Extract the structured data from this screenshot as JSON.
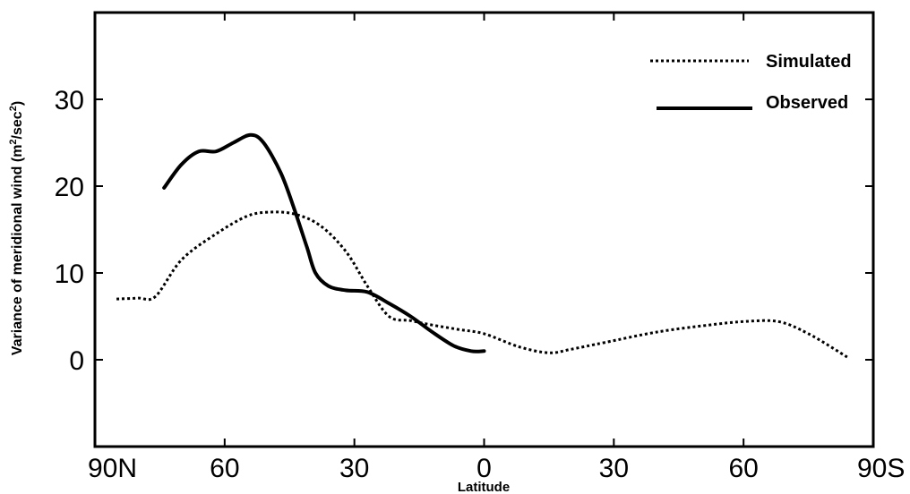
{
  "chart_data": {
    "type": "line",
    "title": "",
    "xlabel": "Latitude",
    "ylabel": "Variance of meridional wind (m2/sec2)",
    "ylabel_parts": {
      "pre1": "Variance of meridional wind (m",
      "sup1": "2",
      "mid": "/sec",
      "sup2": "2",
      "post": ")"
    },
    "x_ticks": [
      {
        "value": 90,
        "label": "90N"
      },
      {
        "value": 60,
        "label": "60"
      },
      {
        "value": 30,
        "label": "30"
      },
      {
        "value": 0,
        "label": "0"
      },
      {
        "value": -30,
        "label": "30"
      },
      {
        "value": -60,
        "label": "60"
      },
      {
        "value": -90,
        "label": "90S"
      }
    ],
    "y_ticks": [
      {
        "value": 0,
        "label": "0"
      },
      {
        "value": 10,
        "label": "10"
      },
      {
        "value": 20,
        "label": "20"
      },
      {
        "value": 30,
        "label": "30"
      }
    ],
    "xlim": [
      90,
      -90
    ],
    "ylim": [
      -10,
      40
    ],
    "grid": false,
    "legend_position": "top-right",
    "series": [
      {
        "name": "Simulated",
        "style": "dotted",
        "color": "#000000",
        "x": [
          85,
          80,
          76,
          70,
          62,
          55,
          50,
          44,
          38,
          32,
          27,
          22,
          17,
          12,
          6,
          0,
          -8,
          -15,
          -20,
          -28,
          -40,
          -52,
          -60,
          -68,
          -75,
          -84
        ],
        "y": [
          7.0,
          7.1,
          7.3,
          11.5,
          14.5,
          16.5,
          17.0,
          16.8,
          15.5,
          12.5,
          8.5,
          5.0,
          4.5,
          4.0,
          3.5,
          3.0,
          1.5,
          0.8,
          1.2,
          2.0,
          3.2,
          4.0,
          4.4,
          4.4,
          3.0,
          0.3
        ]
      },
      {
        "name": "Observed",
        "style": "solid",
        "color": "#000000",
        "x": [
          74,
          70,
          66,
          62,
          58,
          54,
          51,
          47,
          44,
          41,
          39,
          36,
          32,
          27,
          22,
          17,
          12,
          7,
          3,
          0
        ],
        "y": [
          19.8,
          22.5,
          24.0,
          24.0,
          25.0,
          25.9,
          25.0,
          21.5,
          17.5,
          13.0,
          10.0,
          8.5,
          8.0,
          7.8,
          6.5,
          5.0,
          3.2,
          1.6,
          1.0,
          1.0
        ]
      }
    ]
  }
}
